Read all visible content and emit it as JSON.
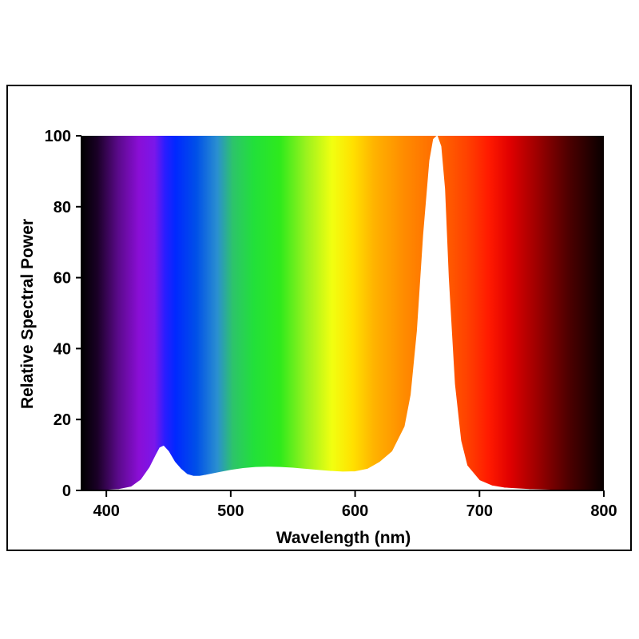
{
  "chart_data": {
    "type": "area",
    "title": "",
    "xlabel": "Wavelength (nm)",
    "ylabel": "Relative Spectral Power",
    "xlim": [
      380,
      800
    ],
    "ylim": [
      0,
      100
    ],
    "x_ticks": [
      400,
      500,
      600,
      700,
      800
    ],
    "y_ticks": [
      0,
      20,
      40,
      60,
      80,
      100
    ],
    "grid": false,
    "legend": "none",
    "fill": "visible-spectrum gradient above the curve",
    "series": [
      {
        "x": [
          380,
          400,
          410,
          420,
          428,
          435,
          440,
          443,
          446,
          450,
          455,
          460,
          465,
          470,
          475,
          480,
          490,
          500,
          510,
          520,
          530,
          540,
          550,
          560,
          570,
          580,
          590,
          600,
          610,
          620,
          630,
          640,
          645,
          650,
          655,
          660,
          663,
          666,
          669,
          672,
          675,
          680,
          685,
          690,
          700,
          710,
          720,
          740,
          760,
          780,
          800
        ],
        "y": [
          0,
          0.1,
          0.3,
          1,
          3,
          6.5,
          10,
          12,
          12.5,
          11,
          8,
          6,
          4.5,
          4,
          4,
          4.3,
          5,
          5.7,
          6.2,
          6.5,
          6.6,
          6.5,
          6.3,
          6.0,
          5.7,
          5.4,
          5.2,
          5.3,
          6,
          8,
          11,
          18,
          27,
          45,
          72,
          93,
          99,
          100,
          97,
          85,
          60,
          30,
          14,
          7,
          2.8,
          1.3,
          0.7,
          0.3,
          0.1,
          0,
          0
        ]
      }
    ]
  }
}
